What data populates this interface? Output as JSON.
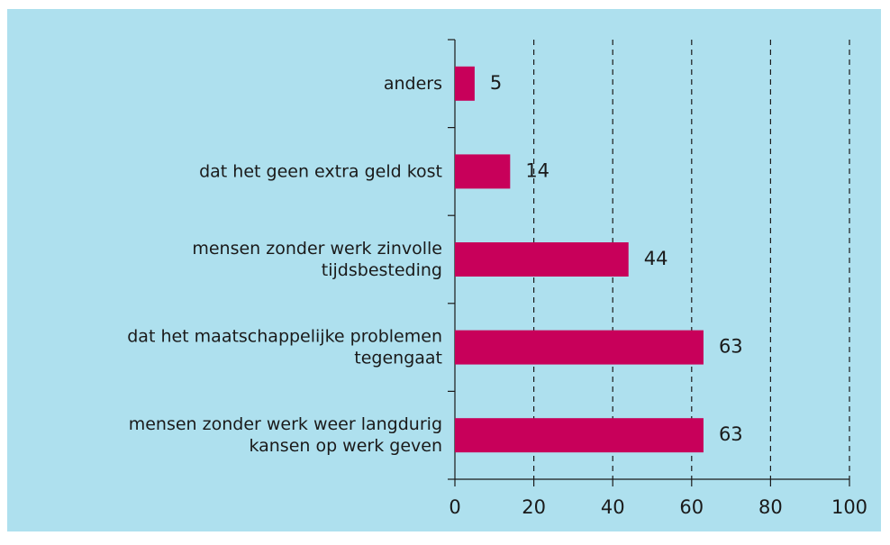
{
  "chart_data": {
    "type": "bar",
    "orientation": "horizontal",
    "categories": [
      "anders",
      "dat het geen extra geld kost",
      "mensen zonder werk zinvolle\ntijdsbesteding",
      "dat het maatschappelijke problemen\ntegengaat",
      "mensen zonder werk weer langdurig\nkansen op werk geven"
    ],
    "values": [
      5,
      14,
      44,
      63,
      63
    ],
    "color": "#c8005a",
    "xlim": [
      0,
      100
    ],
    "xticks": [
      0,
      20,
      40,
      60,
      80,
      100
    ],
    "grid": true
  }
}
